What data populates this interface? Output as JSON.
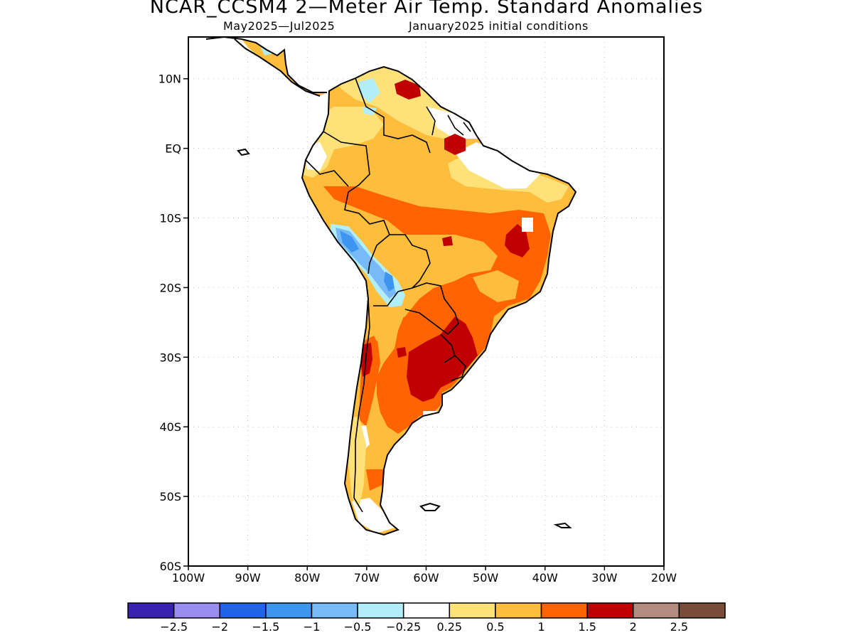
{
  "title": "NCAR_CCSM4 2—Meter Air Temp. Standard Anomalies",
  "subtitle_period": "May2025—Jul2025",
  "subtitle_init": "January2025 initial conditions",
  "map": {
    "lon_range": [
      -100,
      -20
    ],
    "lat_range": [
      -60,
      16
    ],
    "lat_ticks": [
      {
        "value": 10,
        "label": "10N"
      },
      {
        "value": 0,
        "label": "EQ"
      },
      {
        "value": -10,
        "label": "10S"
      },
      {
        "value": -20,
        "label": "20S"
      },
      {
        "value": -30,
        "label": "30S"
      },
      {
        "value": -40,
        "label": "40S"
      },
      {
        "value": -50,
        "label": "50S"
      },
      {
        "value": -60,
        "label": "60S"
      }
    ],
    "lon_ticks": [
      {
        "value": -100,
        "label": "100W"
      },
      {
        "value": -90,
        "label": "90W"
      },
      {
        "value": -80,
        "label": "80W"
      },
      {
        "value": -70,
        "label": "70W"
      },
      {
        "value": -60,
        "label": "60W"
      },
      {
        "value": -50,
        "label": "50W"
      },
      {
        "value": -40,
        "label": "40W"
      },
      {
        "value": -30,
        "label": "30W"
      },
      {
        "value": -20,
        "label": "20W"
      }
    ],
    "grid": true
  },
  "colorbar": {
    "colors": [
      "#3a22b0",
      "#9b8cf2",
      "#1f64e6",
      "#3c96f0",
      "#78b9f8",
      "#b2eefa",
      "#ffffff",
      "#ffe17a",
      "#ffbd3c",
      "#ff6400",
      "#c00000",
      "#b48b7f",
      "#7a4c3a"
    ],
    "labels": [
      "−2.5",
      "−2",
      "−1.5",
      "−1",
      "−0.5",
      "−0.25",
      "0.25",
      "0.5",
      "1",
      "1.5",
      "2",
      "2.5"
    ]
  },
  "colors": {
    "yellow": "#ffe17a",
    "light_orange": "#ffbd3c",
    "orange": "#ff6400",
    "red": "#c00000",
    "light_blue": "#b2eefa",
    "mid_blue": "#78b9f8",
    "blue": "#3c96f0",
    "white": "#ffffff"
  }
}
